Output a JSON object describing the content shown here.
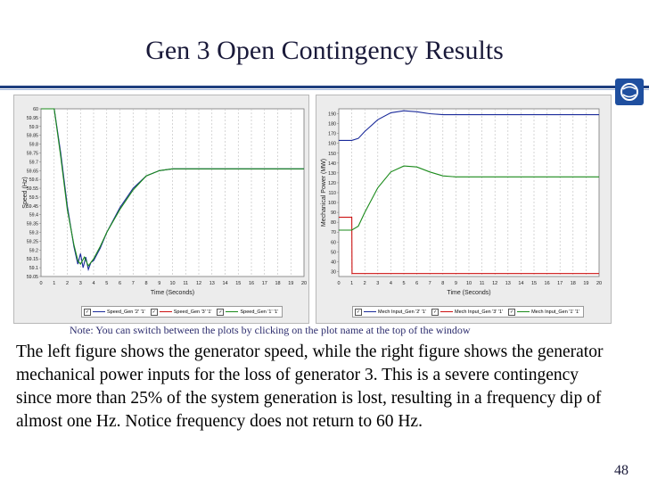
{
  "slide": {
    "title": "Gen 3 Open Contingency Results",
    "note": "Note:  You can switch between the plots by clicking on the plot name at the top of the window",
    "body": "The left figure shows the generator speed, while the right figure shows the generator mechanical power inputs for the loss of generator 3.  This is a severe contingency since more than 25% of the system generation is lost, resulting in a frequency dip of almost one Hz.  Notice frequency does not return to 60 Hz.",
    "page_number": "48",
    "accent_color": "#1f3f7f"
  },
  "chart_data": [
    {
      "type": "line",
      "title": "",
      "xlabel": "Time (Seconds)",
      "ylabel": "Speed (Hz)",
      "xlim": [
        0,
        20
      ],
      "ylim": [
        59.05,
        60
      ],
      "grid": true,
      "xticks": [
        "0",
        "1",
        "2",
        "3",
        "4",
        "5",
        "6",
        "7",
        "8",
        "9",
        "10",
        "11",
        "12",
        "13",
        "14",
        "15",
        "16",
        "17",
        "18",
        "19",
        "20"
      ],
      "yticks": [
        "60",
        "59.95",
        "59.9",
        "59.85",
        "59.8",
        "59.75",
        "59.7",
        "59.65",
        "59.6",
        "59.55",
        "59.5",
        "59.45",
        "59.4",
        "59.35",
        "59.3",
        "59.25",
        "59.2",
        "59.15",
        "59.1",
        "59.05"
      ],
      "legend": [
        {
          "label": "Speed_Gen '2' '1'",
          "color": "#1a2a9a"
        },
        {
          "label": "Speed_Gen '3' '1'",
          "color": "#cc1111"
        },
        {
          "label": "Speed_Gen '1' '1'",
          "color": "#1a8a1a"
        }
      ],
      "series": [
        {
          "name": "Speed_Gen '2' '1'",
          "color": "#1a2a9a",
          "x": [
            0,
            1,
            1.5,
            2,
            2.5,
            2.8,
            3,
            3.2,
            3.4,
            3.6,
            3.8,
            4,
            4.5,
            5,
            6,
            7,
            8,
            9,
            10,
            11,
            12,
            13,
            14,
            15,
            16,
            17,
            18,
            19,
            20
          ],
          "y": [
            60,
            60,
            59.75,
            59.45,
            59.22,
            59.12,
            59.18,
            59.1,
            59.16,
            59.09,
            59.13,
            59.14,
            59.21,
            59.3,
            59.44,
            59.55,
            59.62,
            59.65,
            59.66,
            59.66,
            59.66,
            59.66,
            59.66,
            59.66,
            59.66,
            59.66,
            59.66,
            59.66,
            59.66
          ]
        },
        {
          "name": "Speed_Gen '1' '1'",
          "color": "#1a8a1a",
          "x": [
            0,
            1,
            1.5,
            2,
            2.5,
            2.8,
            3,
            3.3,
            3.6,
            4,
            4.5,
            5,
            6,
            7,
            8,
            9,
            10,
            11,
            12,
            13,
            14,
            15,
            16,
            17,
            18,
            19,
            20
          ],
          "y": [
            60,
            60,
            59.73,
            59.43,
            59.23,
            59.14,
            59.12,
            59.16,
            59.11,
            59.15,
            59.22,
            59.3,
            59.43,
            59.54,
            59.62,
            59.65,
            59.66,
            59.66,
            59.66,
            59.66,
            59.66,
            59.66,
            59.66,
            59.66,
            59.66,
            59.66,
            59.66
          ]
        }
      ]
    },
    {
      "type": "line",
      "title": "",
      "xlabel": "Time (Seconds)",
      "ylabel": "Mechanical Power (MW)",
      "xlim": [
        0,
        20
      ],
      "ylim": [
        25,
        195
      ],
      "grid": true,
      "xticks": [
        "0",
        "1",
        "2",
        "3",
        "4",
        "5",
        "6",
        "7",
        "8",
        "9",
        "10",
        "11",
        "12",
        "13",
        "14",
        "15",
        "16",
        "17",
        "18",
        "19",
        "20"
      ],
      "yticks": [
        "190",
        "180",
        "170",
        "160",
        "150",
        "140",
        "130",
        "120",
        "110",
        "100",
        "90",
        "80",
        "70",
        "60",
        "50",
        "40",
        "30"
      ],
      "legend": [
        {
          "label": "Mech Input_Gen '2' '1'",
          "color": "#1a2a9a"
        },
        {
          "label": "Mech Input_Gen '3' '1'",
          "color": "#cc1111"
        },
        {
          "label": "Mech Input_Gen '1' '1'",
          "color": "#1a8a1a"
        }
      ],
      "series": [
        {
          "name": "Mech Input_Gen '2' '1'",
          "color": "#1a2a9a",
          "x": [
            0,
            1,
            1.5,
            2,
            3,
            4,
            5,
            6,
            7,
            8,
            9,
            10,
            12,
            14,
            16,
            18,
            20
          ],
          "y": [
            163,
            163,
            165,
            172,
            184,
            191,
            193,
            192,
            190,
            189,
            189,
            189,
            189,
            189,
            189,
            189,
            189
          ]
        },
        {
          "name": "Mech Input_Gen '3' '1'",
          "color": "#cc1111",
          "x": [
            0,
            1,
            1.02,
            20
          ],
          "y": [
            85,
            85,
            28,
            28
          ]
        },
        {
          "name": "Mech Input_Gen '1' '1'",
          "color": "#1a8a1a",
          "x": [
            0,
            1,
            1.5,
            2,
            3,
            4,
            5,
            6,
            7,
            8,
            9,
            10,
            12,
            14,
            16,
            18,
            20
          ],
          "y": [
            72,
            72,
            76,
            90,
            115,
            131,
            137,
            136,
            131,
            127,
            126,
            126,
            126,
            126,
            126,
            126,
            126
          ]
        }
      ]
    }
  ]
}
